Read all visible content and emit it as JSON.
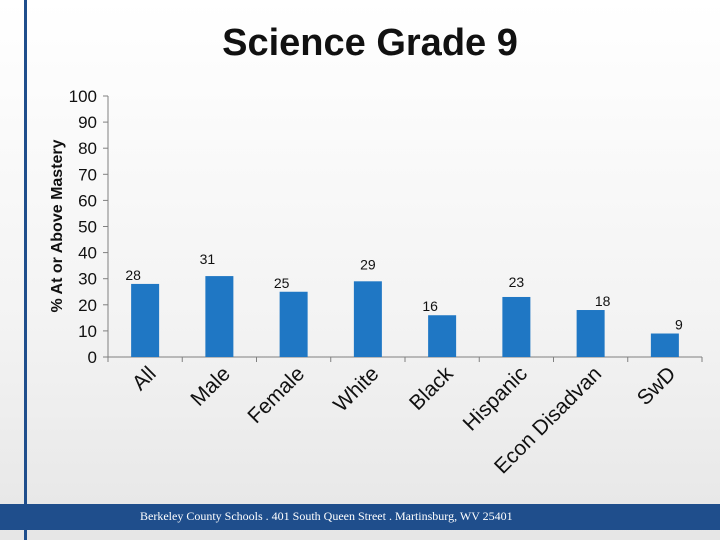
{
  "slide": {
    "title": "Science Grade 9",
    "footer": "Berkeley County Schools . 401 South Queen Street . Martinsburg, WV  25401"
  },
  "colors": {
    "bar": "#1f77c4",
    "accent": "#1f4e8c"
  },
  "chart_data": {
    "type": "bar",
    "title": "Science Grade 9",
    "ylabel": "% At or Above Mastery",
    "xlabel": "",
    "ylim": [
      0,
      100
    ],
    "yticks": [
      0,
      10,
      20,
      30,
      40,
      50,
      60,
      70,
      80,
      90,
      100
    ],
    "grid": false,
    "categories": [
      "All",
      "Male",
      "Female",
      "White",
      "Black",
      "Hispanic",
      "Econ Disadvan",
      "SwD"
    ],
    "values": [
      28,
      31,
      25,
      29,
      16,
      23,
      18,
      9
    ],
    "data_labels": [
      "28",
      "31",
      "25",
      "29",
      "16",
      "23",
      "18",
      "9"
    ]
  }
}
